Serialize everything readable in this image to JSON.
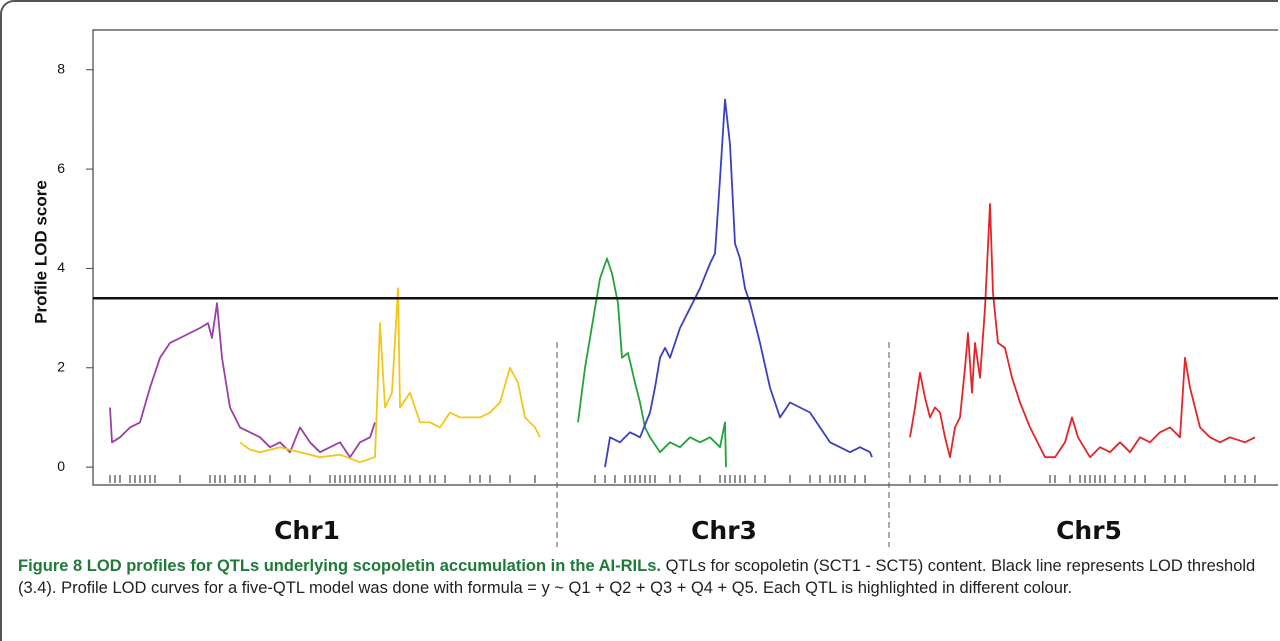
{
  "chart_data": {
    "type": "line",
    "ylabel": "Profile LOD score",
    "ylim": [
      -0.36,
      8.8
    ],
    "yticks": [
      0,
      2,
      4,
      6,
      8
    ],
    "xlim": [
      0,
      118.5
    ],
    "threshold": 3.4,
    "separators": [
      46.4,
      79.6
    ],
    "regions": [
      "Chr1",
      "Chr3",
      "Chr5"
    ],
    "markers": [
      1.7,
      2.2,
      2.7,
      3.7,
      4.2,
      4.7,
      5.2,
      5.7,
      6.2,
      8.7,
      11.7,
      12.2,
      12.7,
      13.2,
      14.2,
      14.7,
      15.2,
      16.2,
      17.7,
      19.7,
      21.7,
      23.7,
      24.2,
      24.7,
      25.2,
      25.7,
      26.2,
      26.7,
      27.2,
      27.7,
      28.2,
      28.7,
      29.2,
      29.7,
      30.2,
      31.2,
      31.7,
      32.7,
      33.7,
      34.2,
      35.2,
      37.7,
      38.7,
      39.7,
      41.7,
      44.2,
      50.2,
      51.2,
      52.2,
      53.2,
      53.7,
      54.2,
      54.7,
      55.2,
      55.7,
      56.2,
      57.7,
      58.7,
      60.7,
      62.7,
      63.2,
      63.7,
      64.2,
      64.7,
      65.2,
      66.2,
      67.2,
      69.7,
      71.7,
      72.7,
      73.7,
      74.2,
      74.7,
      75.2,
      76.2,
      77.2,
      81.7,
      83.2,
      84.7,
      86.7,
      87.7,
      89.7,
      90.7,
      95.7,
      96.2,
      97.7,
      98.7,
      99.2,
      99.7,
      100.2,
      100.7,
      101.2,
      102.2,
      103.2,
      104.2,
      105.2,
      107.2,
      108.2,
      109.2,
      113.2,
      114.2,
      115.2,
      116.2
    ],
    "series": [
      {
        "color": "#9b3fa8",
        "x": [
          1.7,
          1.9,
          2.7,
          3.7,
          4.7,
          5.7,
          6.7,
          7.7,
          8.7,
          9.7,
          10.7,
          11.5,
          11.9,
          12.4,
          12.9,
          13.7,
          14.7,
          15.7,
          16.7,
          17.7,
          18.7,
          19.7,
          20.7,
          21.7,
          22.7,
          23.7,
          24.7,
          25.7,
          26.7,
          27.7,
          28.2
        ],
        "values": [
          1.2,
          0.5,
          0.6,
          0.8,
          0.9,
          1.6,
          2.2,
          2.5,
          2.6,
          2.7,
          2.8,
          2.9,
          2.6,
          3.3,
          2.2,
          1.2,
          0.8,
          0.7,
          0.6,
          0.4,
          0.5,
          0.3,
          0.8,
          0.5,
          0.3,
          0.4,
          0.5,
          0.2,
          0.5,
          0.6,
          0.9
        ]
      },
      {
        "color": "#f5c518",
        "x": [
          14.7,
          15.7,
          16.7,
          18.7,
          20.7,
          22.7,
          24.7,
          26.7,
          28.2,
          28.7,
          29.2,
          29.9,
          30.5,
          30.7,
          31.7,
          32.7,
          33.7,
          34.7,
          35.7,
          36.7,
          37.7,
          38.7,
          39.7,
          40.7,
          41.7,
          42.5,
          43.2,
          44.2,
          44.7
        ],
        "values": [
          0.5,
          0.35,
          0.3,
          0.4,
          0.3,
          0.2,
          0.25,
          0.1,
          0.2,
          2.9,
          1.2,
          1.5,
          3.6,
          1.2,
          1.5,
          0.9,
          0.9,
          0.8,
          1.1,
          1.0,
          1.0,
          1.0,
          1.1,
          1.3,
          2.0,
          1.7,
          1.0,
          0.8,
          0.6
        ]
      },
      {
        "color": "#22a33a",
        "x": [
          48.5,
          49.2,
          50.2,
          50.7,
          51.4,
          51.9,
          52.5,
          52.9,
          53.5,
          54.2,
          54.7,
          55.2,
          55.7,
          56.7,
          57.7,
          58.7,
          59.7,
          60.7,
          61.7,
          62.7,
          63.2,
          63.3
        ],
        "values": [
          0.9,
          2.0,
          3.2,
          3.8,
          4.2,
          3.9,
          3.3,
          2.2,
          2.3,
          1.7,
          1.3,
          0.8,
          0.6,
          0.3,
          0.5,
          0.4,
          0.6,
          0.5,
          0.6,
          0.4,
          0.9,
          0.0
        ]
      },
      {
        "color": "#3a3fc4",
        "x": [
          51.2,
          51.7,
          52.7,
          53.7,
          54.7,
          55.7,
          56.2,
          56.7,
          57.2,
          57.7,
          58.7,
          59.7,
          60.7,
          61.7,
          62.2,
          62.7,
          63.2,
          63.7,
          64.2,
          64.7,
          65.2,
          65.7,
          66.7,
          67.7,
          68.7,
          69.7,
          70.7,
          71.7,
          72.7,
          73.7,
          74.7,
          75.7,
          76.7,
          77.7,
          77.9
        ],
        "values": [
          0.0,
          0.6,
          0.5,
          0.7,
          0.6,
          1.1,
          1.6,
          2.2,
          2.4,
          2.2,
          2.8,
          3.2,
          3.6,
          4.1,
          4.3,
          5.8,
          7.4,
          6.5,
          4.5,
          4.2,
          3.6,
          3.3,
          2.5,
          1.6,
          1.0,
          1.3,
          1.2,
          1.1,
          0.8,
          0.5,
          0.4,
          0.3,
          0.4,
          0.3,
          0.2
        ]
      },
      {
        "color": "#e3252a",
        "x": [
          81.7,
          82.2,
          82.7,
          83.2,
          83.7,
          84.2,
          84.7,
          85.2,
          85.7,
          86.2,
          86.7,
          87.2,
          87.5,
          87.9,
          88.2,
          88.7,
          89.2,
          89.7,
          90.0,
          90.5,
          91.2,
          91.9,
          92.7,
          93.7,
          94.7,
          95.2,
          96.2,
          97.2,
          97.9,
          98.5,
          99.7,
          100.7,
          101.7,
          102.7,
          103.7,
          104.7,
          105.7,
          106.7,
          107.7,
          108.7,
          109.2,
          109.7,
          110.7,
          111.7,
          112.7,
          113.7,
          115.2,
          116.2
        ],
        "values": [
          0.6,
          1.2,
          1.9,
          1.4,
          1.0,
          1.2,
          1.1,
          0.6,
          0.2,
          0.8,
          1.0,
          2.0,
          2.7,
          1.5,
          2.5,
          1.8,
          3.2,
          5.3,
          3.5,
          2.5,
          2.4,
          1.8,
          1.3,
          0.8,
          0.4,
          0.2,
          0.2,
          0.5,
          1.0,
          0.6,
          0.2,
          0.4,
          0.3,
          0.5,
          0.3,
          0.6,
          0.5,
          0.7,
          0.8,
          0.6,
          2.2,
          1.6,
          0.8,
          0.6,
          0.5,
          0.6,
          0.5,
          0.6
        ]
      }
    ]
  },
  "caption": {
    "label": "Figure 8",
    "title": "LOD profiles for QTLs underlying scopoletin accumulation in the AI-RILs.",
    "text": "QTLs for scopoletin (SCT1 - SCT5) content. Black line represents LOD threshold (3.4). Profile LOD curves for a five-QTL model was done with formula = y ~ Q1 + Q2 + Q3 + Q4 + Q5. Each QTL is highlighted in different colour."
  }
}
